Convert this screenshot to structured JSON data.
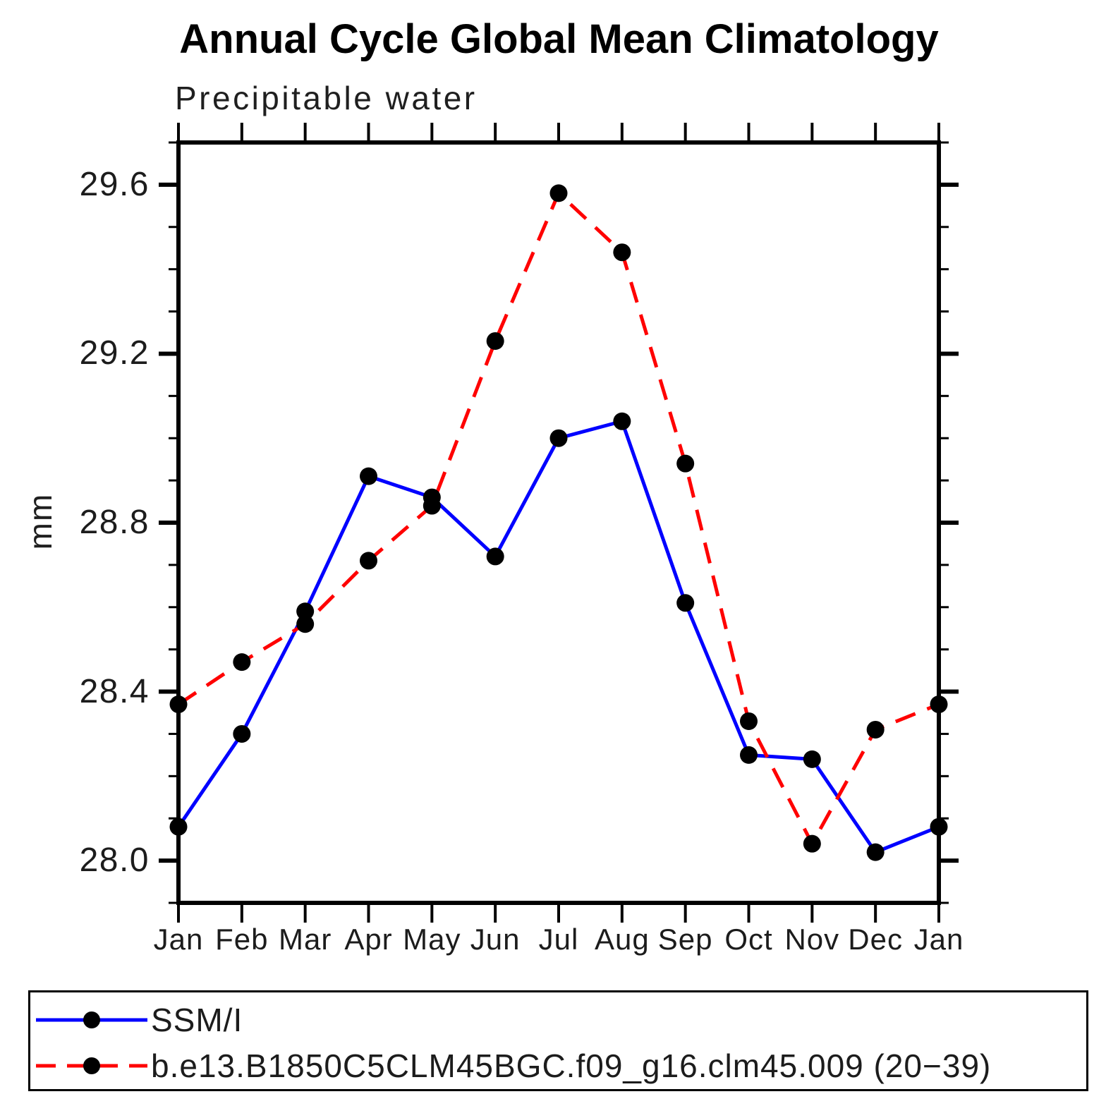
{
  "chart_data": {
    "type": "line",
    "title": "Annual Cycle Global Mean Climatology",
    "subtitle": "Precipitable water",
    "xlabel": "",
    "ylabel": "mm",
    "categories": [
      "Jan",
      "Feb",
      "Mar",
      "Apr",
      "May",
      "Jun",
      "Jul",
      "Aug",
      "Sep",
      "Oct",
      "Nov",
      "Dec",
      "Jan"
    ],
    "ylim": [
      27.9,
      29.7
    ],
    "yticks_major": [
      28.0,
      28.4,
      28.8,
      29.2,
      29.6
    ],
    "ytick_labels": [
      "28.0",
      "28.4",
      "28.8",
      "29.2",
      "29.6"
    ],
    "yminor_step": 0.1,
    "grid": false,
    "legend_position": "bottom-left-box",
    "axis_color": "#000000",
    "marker_color": "#000000",
    "series": [
      {
        "name": "SSM/I",
        "color": "#0000ff",
        "style": "solid",
        "marker": "circle",
        "values": [
          28.08,
          28.3,
          28.59,
          28.91,
          28.86,
          28.72,
          29.0,
          29.04,
          28.61,
          28.25,
          28.24,
          28.02,
          28.08
        ]
      },
      {
        "name": "b.e13.B1850C5CLM45BGC.f09_g16.clm45.009 (20−39)",
        "color": "#ff0000",
        "style": "dashed",
        "marker": "circle",
        "values": [
          28.37,
          28.47,
          28.56,
          28.71,
          28.84,
          29.23,
          29.58,
          29.44,
          28.94,
          28.33,
          28.04,
          28.31,
          28.37
        ]
      }
    ]
  }
}
